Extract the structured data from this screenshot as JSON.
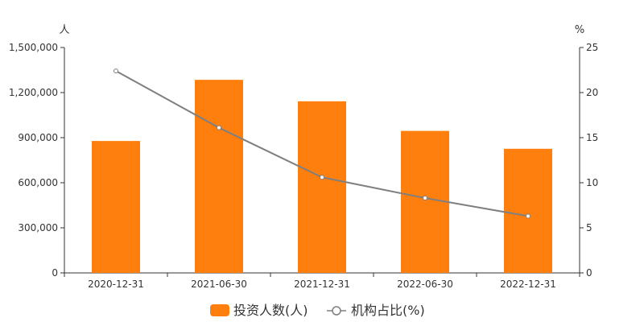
{
  "chart_data": {
    "type": "bar",
    "categories": [
      "2020-12-31",
      "2021-06-30",
      "2021-12-31",
      "2022-06-30",
      "2022-12-31"
    ],
    "series": [
      {
        "name": "投资人数(人)",
        "kind": "bar",
        "axis": "left",
        "color": "#ff7f0e",
        "values": [
          878000,
          1285000,
          1142000,
          945000,
          826000
        ]
      },
      {
        "name": "机构占比(%)",
        "kind": "line",
        "axis": "right",
        "color": "#7f7f7f",
        "values": [
          22.4,
          16.1,
          10.6,
          8.3,
          6.3
        ]
      }
    ],
    "left_axis": {
      "unit": "人",
      "ylim": [
        0,
        1500000
      ],
      "ticks": [
        0,
        300000,
        600000,
        900000,
        1200000,
        1500000
      ],
      "tick_labels": [
        "0",
        "300,000",
        "600,000",
        "900,000",
        "1,200,000",
        "1,500,000"
      ]
    },
    "right_axis": {
      "unit": "%",
      "ylim": [
        0,
        25
      ],
      "ticks": [
        0,
        5,
        10,
        15,
        20,
        25
      ],
      "tick_labels": [
        "0",
        "5",
        "10",
        "15",
        "20",
        "25"
      ]
    },
    "grid": false,
    "legend_placement": "bottom-center"
  }
}
